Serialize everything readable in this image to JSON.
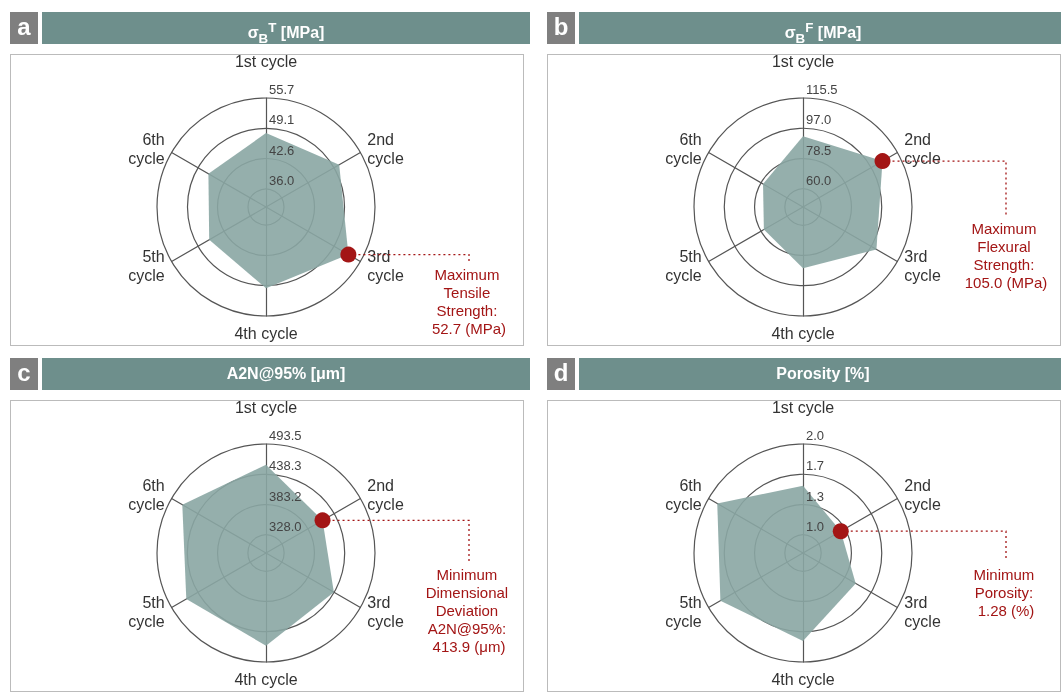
{
  "chart_data": [
    {
      "type": "radar",
      "title": "σ$_{B}$$^{T}$ [MPa]",
      "categories": [
        "1st cycle",
        "2nd cycle",
        "3rd cycle",
        "4th cycle",
        "5th cycle",
        "6th cycle"
      ],
      "series": [
        {
          "color": "#8aa6a3",
          "values": [
            48.1,
            50.4,
            52.7,
            49.7,
            46.3,
            46.5
          ]
        }
      ],
      "ylim": [
        32.1,
        55.7
      ],
      "yticks": [
        {
          "value": 36,
          "label": "36.0"
        },
        42.6,
        49.1,
        55.7
      ],
      "annotations": [
        "a",
        {
          "text": "Maximum Tensile Strength: 52.7 (MPa)",
          "x": "3rd cycle"
        }
      ]
    },
    {
      "type": "radar",
      "title": "σ$_{B}$$^{F}$ [MPa]",
      "categories": [
        "1st cycle",
        "2nd cycle",
        "3rd cycle",
        "4th cycle",
        "5th cycle",
        "6th cycle"
      ],
      "series": [
        {
          "color": "#8aa6a3",
          "values": [
            92.1,
            105.0,
            100.7,
            86.3,
            76.5,
            77.1
          ]
        }
      ],
      "ylim": [
        48.9,
        115.5
      ],
      "yticks": [
        {
          "value": 60,
          "label": "60.0"
        },
        78.5,
        {
          "value": 97,
          "label": "97.0"
        },
        115.5
      ],
      "annotations": [
        "b",
        {
          "text": "Maximum Flexural Strength: 105.0 (MPa)",
          "x": "2nd cycle"
        }
      ]
    },
    {
      "type": "radar",
      "title": "A2N@95% [μm]",
      "categories": [
        "1st cycle",
        "2nd cycle",
        "3rd cycle",
        "4th cycle",
        "5th cycle",
        "6th cycle"
      ],
      "series": [
        {
          "color": "#8aa6a3",
          "values": [
            455.9,
            413.9,
            437.7,
            463.8,
            462.6,
            471
          ]
        }
      ],
      "ylim": [
        295,
        493.5
      ],
      "yticks": [
        {
          "value": 328,
          "label": "328.0"
        },
        383.2,
        438.3,
        493.5
      ],
      "annotations": [
        "c",
        {
          "text": "Minimum Dimensional Deviation A2N@95%: 413.9 (μm)",
          "x": "2nd cycle"
        }
      ]
    },
    {
      "type": "radar",
      "title": "Porosity [%]",
      "categories": [
        "1st cycle",
        "2nd cycle",
        "3rd cycle",
        "4th cycle",
        "5th cycle",
        "6th cycle"
      ],
      "series": [
        {
          "color": "#8aa6a3",
          "values": [
            1.54,
            1.28,
            1.47,
            1.77,
            1.85,
            1.89
          ]
        }
      ],
      "ylim": [
        0.8,
        2.0
      ],
      "yticks": [
        {
          "value": 1,
          "label": "1.0"
        },
        {
          "value": 1.333,
          "label": "1.3"
        },
        {
          "value": 1.667,
          "label": "1.7"
        },
        {
          "value": 2,
          "label": "2.0"
        }
      ],
      "annotations": [
        "d",
        {
          "text": "Minimum Porosity: 1.28 (%)",
          "x": "2nd cycle"
        }
      ]
    }
  ]
}
